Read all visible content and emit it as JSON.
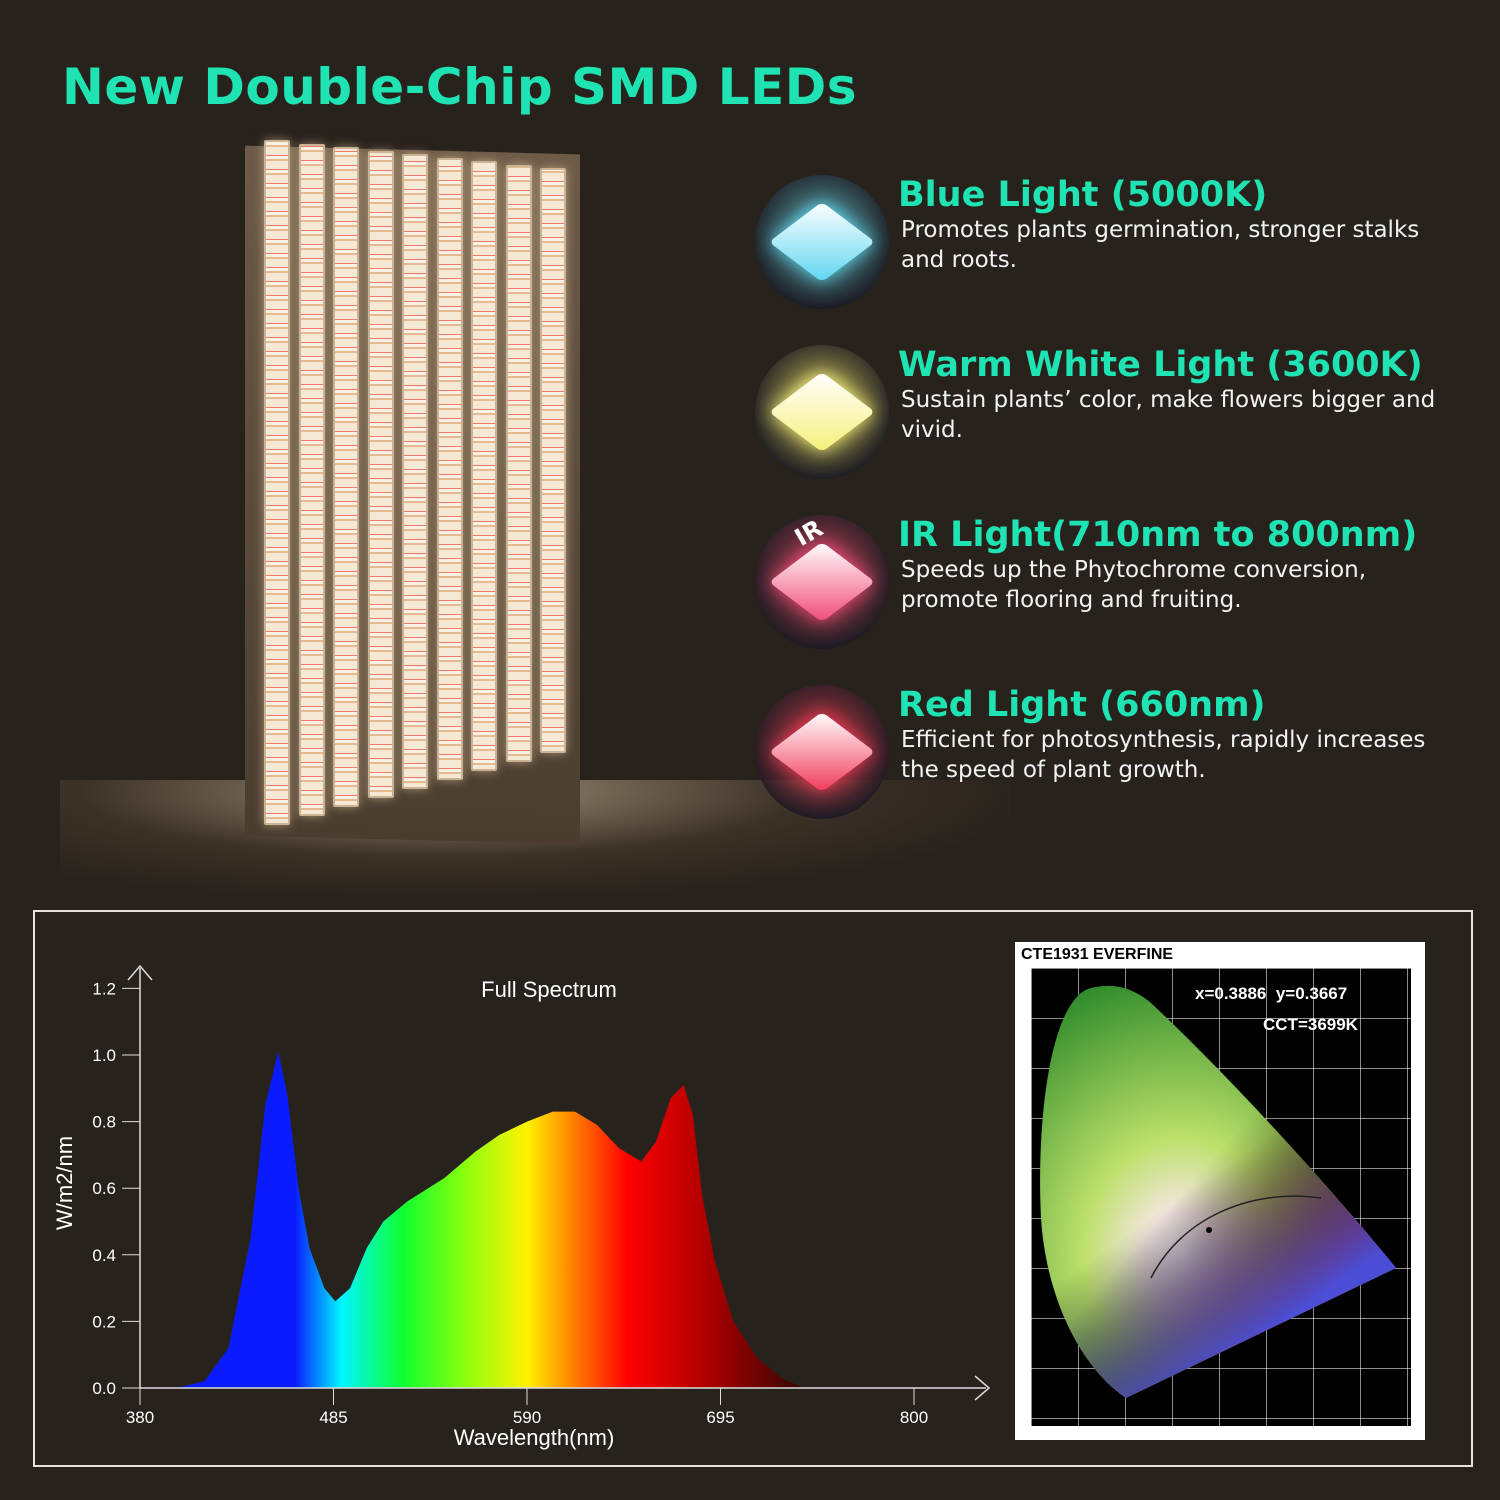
{
  "title": "New Double-Chip SMD LEDs",
  "features": [
    {
      "heading": "Blue Light (5000K)",
      "text": "Promotes plants germination, stronger stalks and roots.",
      "icon": "blue-chip-icon",
      "color": "#5fd6f0"
    },
    {
      "heading": "Warm White Light (3600K)",
      "text": "Sustain plants’ color, make flowers bigger and vivid.",
      "icon": "warm-white-chip-icon",
      "color": "#f6f07a"
    },
    {
      "heading": "IR Light(710nm to 800nm)",
      "text": "Speeds up the Phytochrome conversion, promote flooring and fruiting.",
      "icon": "ir-chip-icon",
      "color": "#f04a78",
      "icon_label": "IR"
    },
    {
      "heading": "Red Light (660nm)",
      "text": "Efficient for photosynthesis, rapidly increases the speed of plant growth.",
      "icon": "red-chip-icon",
      "color": "#f03a5a"
    }
  ],
  "colors": {
    "accent": "#1fe3b2",
    "background": "#28221c"
  },
  "cie": {
    "label": "CTE1931 EVERFINE",
    "coords": "x=0.3886  y=0.3667",
    "cct": "CCT=3699K"
  },
  "chart_data": {
    "type": "area",
    "title": "Full Spectrum",
    "xlabel": "Wavelength(nm)",
    "ylabel": "W/m2/nm",
    "xlim": [
      380,
      800
    ],
    "ylim": [
      0,
      1.2
    ],
    "xticks": [
      "380",
      "485",
      "590",
      "695",
      "800"
    ],
    "yticks": [
      "0.0",
      "0.2",
      "0.4",
      "0.6",
      "0.8",
      "1.0",
      "1.2"
    ],
    "grid": false,
    "points": [
      [
        400,
        0
      ],
      [
        415,
        0.02
      ],
      [
        428,
        0.12
      ],
      [
        440,
        0.45
      ],
      [
        448,
        0.85
      ],
      [
        455,
        1.01
      ],
      [
        460,
        0.88
      ],
      [
        466,
        0.6
      ],
      [
        472,
        0.42
      ],
      [
        480,
        0.3
      ],
      [
        486,
        0.26
      ],
      [
        494,
        0.3
      ],
      [
        503,
        0.42
      ],
      [
        512,
        0.5
      ],
      [
        525,
        0.56
      ],
      [
        545,
        0.63
      ],
      [
        562,
        0.71
      ],
      [
        575,
        0.76
      ],
      [
        590,
        0.8
      ],
      [
        604,
        0.83
      ],
      [
        616,
        0.83
      ],
      [
        628,
        0.79
      ],
      [
        640,
        0.72
      ],
      [
        652,
        0.68
      ],
      [
        660,
        0.74
      ],
      [
        668,
        0.87
      ],
      [
        675,
        0.91
      ],
      [
        680,
        0.82
      ],
      [
        685,
        0.58
      ],
      [
        692,
        0.38
      ],
      [
        702,
        0.2
      ],
      [
        715,
        0.09
      ],
      [
        728,
        0.03
      ],
      [
        740,
        0
      ]
    ]
  }
}
